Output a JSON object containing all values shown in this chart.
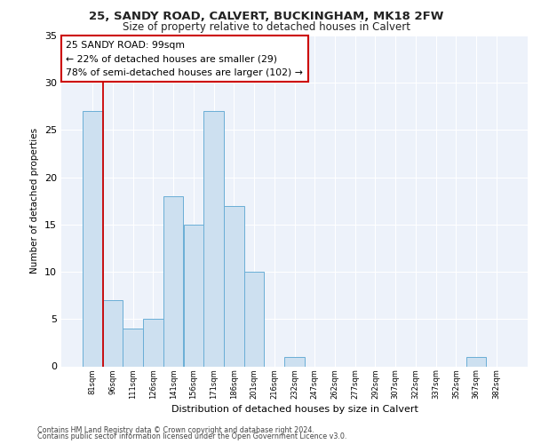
{
  "title_line1": "25, SANDY ROAD, CALVERT, BUCKINGHAM, MK18 2FW",
  "title_line2": "Size of property relative to detached houses in Calvert",
  "xlabel": "Distribution of detached houses by size in Calvert",
  "ylabel": "Number of detached properties",
  "categories": [
    "81sqm",
    "96sqm",
    "111sqm",
    "126sqm",
    "141sqm",
    "156sqm",
    "171sqm",
    "186sqm",
    "201sqm",
    "216sqm",
    "232sqm",
    "247sqm",
    "262sqm",
    "277sqm",
    "292sqm",
    "307sqm",
    "322sqm",
    "337sqm",
    "352sqm",
    "367sqm",
    "382sqm"
  ],
  "values": [
    27,
    7,
    4,
    5,
    18,
    15,
    27,
    17,
    10,
    0,
    1,
    0,
    0,
    0,
    0,
    0,
    0,
    0,
    0,
    1,
    0
  ],
  "bar_color": "#cde0f0",
  "bar_edge_color": "#6aaed6",
  "annotation_box_text": "25 SANDY ROAD: 99sqm\n← 22% of detached houses are smaller (29)\n78% of semi-detached houses are larger (102) →",
  "vline_x": 0.5,
  "vline_color": "#cc0000",
  "ylim": [
    0,
    35
  ],
  "yticks": [
    0,
    5,
    10,
    15,
    20,
    25,
    30,
    35
  ],
  "background_color": "#edf2fa",
  "grid_color": "#ffffff",
  "footer_line1": "Contains HM Land Registry data © Crown copyright and database right 2024.",
  "footer_line2": "Contains public sector information licensed under the Open Government Licence v3.0."
}
